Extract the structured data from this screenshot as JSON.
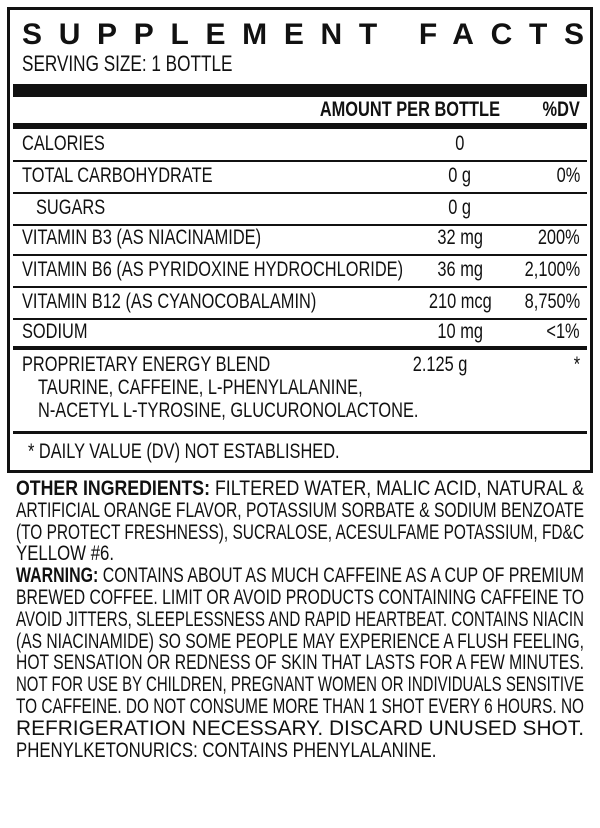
{
  "title": "SUPPLEMENT FACTS",
  "serving_size": "SERVING SIZE: 1 BOTTLE",
  "header": {
    "amount": "AMOUNT PER BOTTLE",
    "dv": "%DV"
  },
  "rows": [
    {
      "label": "CALORIES",
      "amount": "0",
      "dv": ""
    },
    {
      "label": "TOTAL CARBOHYDRATE",
      "amount": "0 g",
      "dv": "0%"
    },
    {
      "label": "SUGARS",
      "amount": "0 g",
      "dv": ""
    },
    {
      "label": "VITAMIN B3 (AS NIACINAMIDE)",
      "amount": "32 mg",
      "dv": "200%"
    },
    {
      "label": "VITAMIN B6 (AS PYRIDOXINE HYDROCHLORIDE)",
      "amount": "36 mg",
      "dv": "2,100%"
    },
    {
      "label": "VITAMIN B12 (AS CYANOCOBALAMIN)",
      "amount": "210 mcg",
      "dv": "8,750%"
    },
    {
      "label": "SODIUM",
      "amount": "10 mg",
      "dv": "<1%"
    }
  ],
  "blend": {
    "label": "PROPRIETARY ENERGY BLEND",
    "amount": "2.125 g",
    "dv": "*",
    "ingredients_1": "TAURINE, CAFFEINE, L-PHENYLALANINE,",
    "ingredients_2": "N-ACETYL L-TYROSINE, GLUCURONOLACTONE."
  },
  "footnote": "* DAILY VALUE (DV) NOT ESTABLISHED.",
  "other_ingredients": {
    "label": "OTHER INGREDIENTS:",
    "lines": [
      " FILTERED WATER, MALIC ACID, NATURAL &",
      "ARTIFICIAL ORANGE FLAVOR, POTASSIUM SORBATE & SODIUM BENZOATE",
      "(TO PROTECT FRESHNESS), SUCRALOSE, ACESULFAME POTASSIUM, FD&C",
      "YELLOW #6."
    ]
  },
  "warning": {
    "label": "WARNING:",
    "lines": [
      " CONTAINS ABOUT AS MUCH CAFFEINE AS A CUP OF PREMIUM",
      "BREWED COFFEE. LIMIT OR AVOID PRODUCTS CONTAINING CAFFEINE TO",
      "AVOID JITTERS, SLEEPLESSNESS AND RAPID HEARTBEAT. CONTAINS NIACIN",
      "(AS NIACINAMIDE) SO SOME PEOPLE MAY EXPERIENCE A FLUSH FEELING,",
      "HOT SENSATION OR REDNESS OF SKIN THAT LASTS FOR A FEW MINUTES.",
      "NOT FOR USE BY CHILDREN, PREGNANT WOMEN OR INDIVIDUALS SENSITIVE",
      "TO CAFFEINE. DO NOT CONSUME MORE THAN 1 SHOT EVERY 6 HOURS. NO",
      "REFRIGERATION NECESSARY. DISCARD UNUSED SHOT.",
      "PHENYLKETONURICS: CONTAINS PHENYLALANINE."
    ]
  }
}
